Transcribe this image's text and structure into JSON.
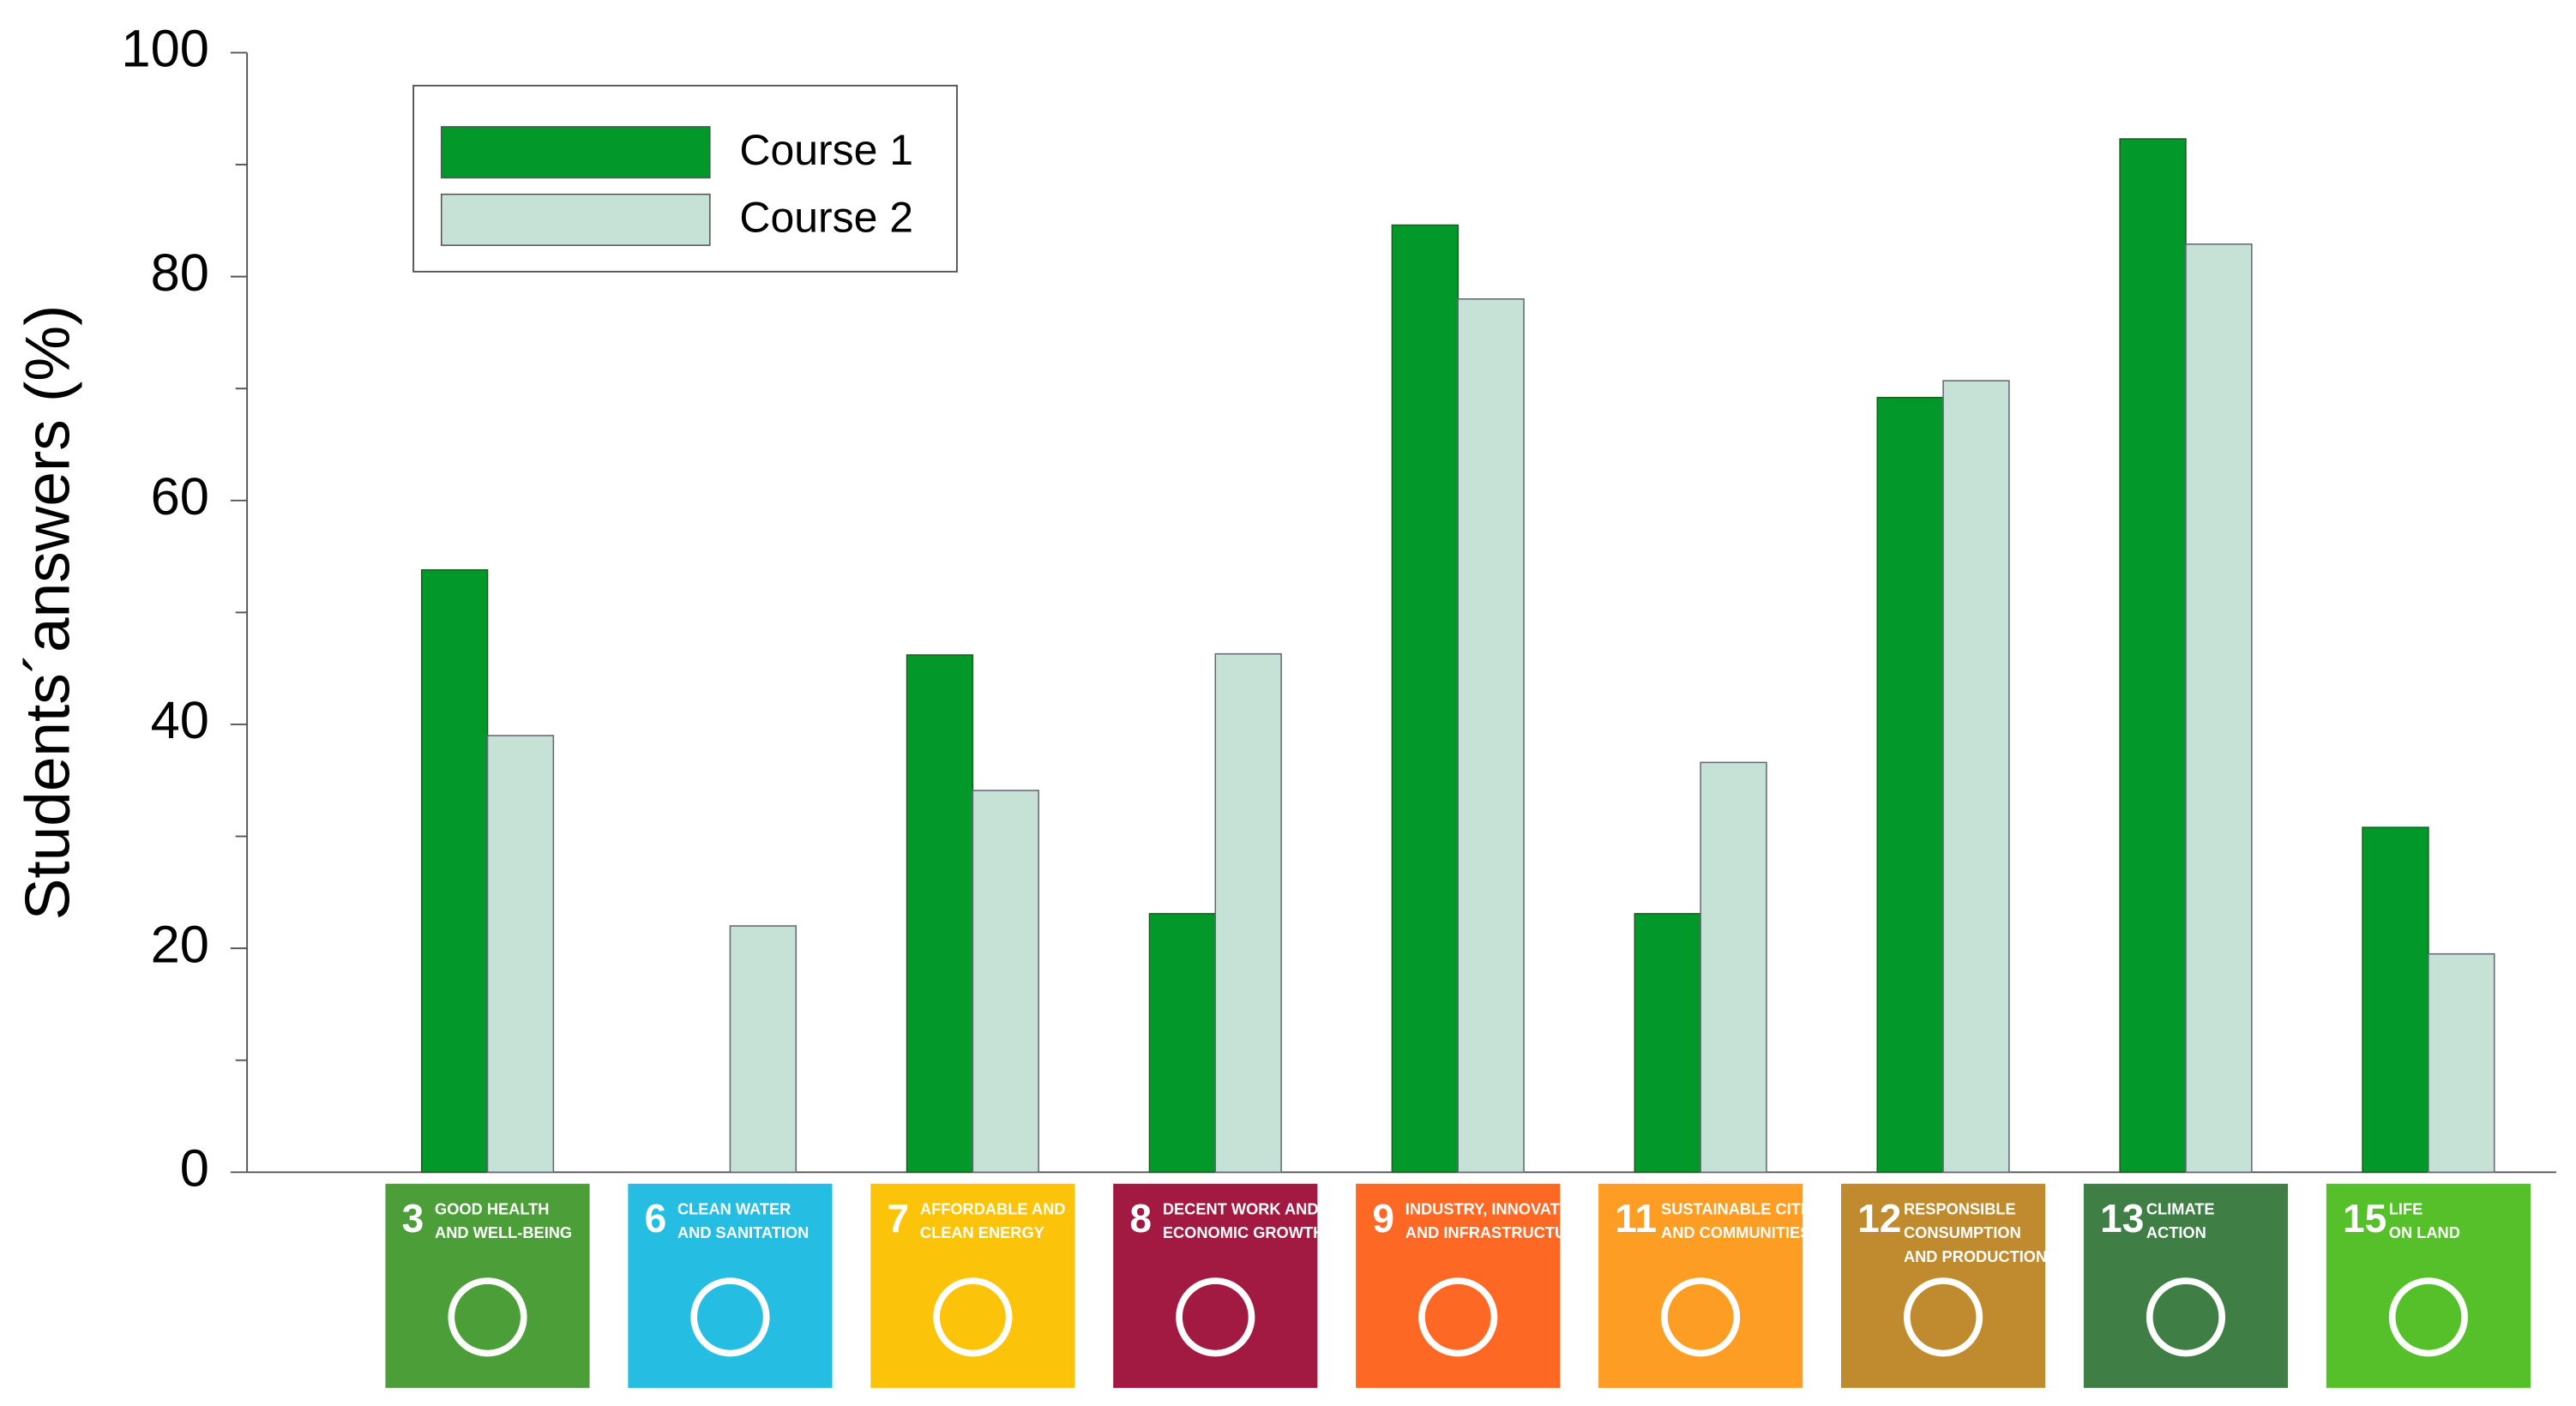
{
  "chart_data": {
    "type": "bar",
    "y_label": "Students´answers (%)",
    "categories": [
      {
        "number": "3",
        "lines": [
          "GOOD HEALTH",
          "AND WELL-BEING"
        ],
        "color": "#4c9f38"
      },
      {
        "number": "6",
        "lines": [
          "CLEAN WATER",
          "AND SANITATION"
        ],
        "color": "#26bde2"
      },
      {
        "number": "7",
        "lines": [
          "AFFORDABLE AND",
          "CLEAN ENERGY"
        ],
        "color": "#fcc30b"
      },
      {
        "number": "8",
        "lines": [
          "DECENT WORK AND",
          "ECONOMIC GROWTH"
        ],
        "color": "#a21942"
      },
      {
        "number": "9",
        "lines": [
          "INDUSTRY, INNOVATION",
          "AND INFRASTRUCTURE"
        ],
        "color": "#fd6925"
      },
      {
        "number": "11",
        "lines": [
          "SUSTAINABLE CITIES",
          "AND COMMUNITIES"
        ],
        "color": "#fd9d24"
      },
      {
        "number": "12",
        "lines": [
          "RESPONSIBLE",
          "CONSUMPTION",
          "AND PRODUCTION"
        ],
        "color": "#bf8b2e"
      },
      {
        "number": "13",
        "lines": [
          "CLIMATE",
          "ACTION"
        ],
        "color": "#3f7e44"
      },
      {
        "number": "15",
        "lines": [
          "LIFE",
          "ON LAND"
        ],
        "color": "#56c02b"
      }
    ],
    "series": [
      {
        "name": "Course 1",
        "color": "#03982a",
        "values": [
          53.8,
          0,
          46.2,
          23.1,
          84.6,
          23.1,
          69.2,
          92.3,
          30.8
        ]
      },
      {
        "name": "Course 2",
        "color": "#c6e2d7",
        "values": [
          39.0,
          22.0,
          34.1,
          46.3,
          78.0,
          36.6,
          70.7,
          82.9,
          19.5
        ]
      }
    ],
    "ylim": [
      0,
      100
    ],
    "yticks": [
      0,
      20,
      40,
      60,
      80,
      100
    ],
    "minor_yticks": [
      10,
      30,
      50,
      70,
      90
    ],
    "legend": "upper left"
  }
}
